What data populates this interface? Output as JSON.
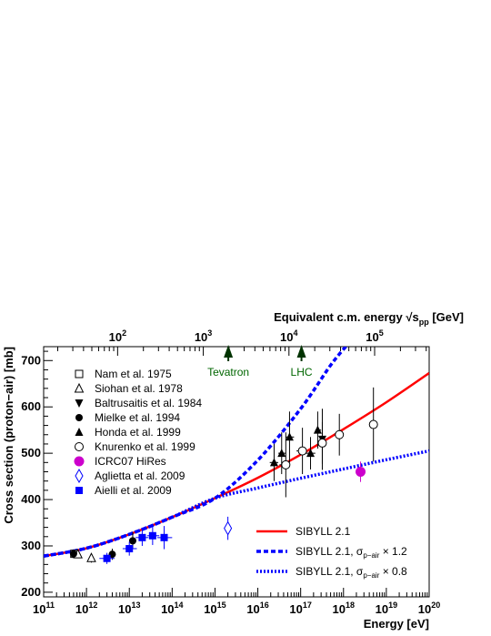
{
  "chart_data": {
    "type": "scatter",
    "ylabel": "Cross section (proton−air)  [mb]",
    "xlabel": "Energy   [eV]",
    "top_axis_label": "Equivalent c.m. energy",
    "top_axis_symbol": "√s",
    "top_axis_sub": "pp",
    "top_axis_unit": "[GeV]",
    "x_scale": "log",
    "xlim": [
      100000000000.0,
      1e+20
    ],
    "ylim": [
      190,
      730
    ],
    "x_ticks": [
      {
        "e": 11,
        "label": "10",
        "exp": "11"
      },
      {
        "e": 12,
        "label": "10",
        "exp": "12"
      },
      {
        "e": 13,
        "label": "10",
        "exp": "13"
      },
      {
        "e": 14,
        "label": "10",
        "exp": "14"
      },
      {
        "e": 15,
        "label": "10",
        "exp": "15"
      },
      {
        "e": 16,
        "label": "10",
        "exp": "16"
      },
      {
        "e": 17,
        "label": "10",
        "exp": "17"
      },
      {
        "e": 18,
        "label": "10",
        "exp": "18"
      },
      {
        "e": 19,
        "label": "10",
        "exp": "19"
      },
      {
        "e": 20,
        "label": "10",
        "exp": "20"
      }
    ],
    "y_ticks": [
      {
        "v": 200,
        "label": "200"
      },
      {
        "v": 300,
        "label": "300"
      },
      {
        "v": 400,
        "label": "400"
      },
      {
        "v": 500,
        "label": "500"
      },
      {
        "v": 600,
        "label": "600"
      },
      {
        "v": 700,
        "label": "700"
      }
    ],
    "top_ticks": [
      {
        "e": 2,
        "label": "10",
        "exp": "2"
      },
      {
        "e": 3,
        "label": "10",
        "exp": "3"
      },
      {
        "e": 4,
        "label": "10",
        "exp": "4"
      },
      {
        "e": 5,
        "label": "10",
        "exp": "5"
      }
    ],
    "annotations": [
      {
        "text": "Tevatron",
        "sqrt_s_gev": 1960
      },
      {
        "text": "LHC",
        "sqrt_s_gev": 14000
      }
    ],
    "series": [
      {
        "name": "Nam et al. 1975",
        "marker": "open-square",
        "color": "#000000",
        "points": [
          {
            "x": 520000000000.0,
            "y": 283,
            "yerr": 6
          }
        ]
      },
      {
        "name": "Siohan et al. 1978",
        "marker": "open-triangle",
        "color": "#000000",
        "points": [
          {
            "x": 630000000000.0,
            "y": 282,
            "yerr": 8
          },
          {
            "x": 1300000000000.0,
            "y": 274,
            "yerr": 10
          }
        ]
      },
      {
        "name": "Baltrusaitis et al. 1984",
        "marker": "filled-triangle-down",
        "color": "#000000",
        "points": [
          {
            "x": 3.2e+17,
            "y": 530,
            "yerr": 66
          }
        ]
      },
      {
        "name": "Mielke et al. 1994",
        "marker": "filled-circle",
        "color": "#000000",
        "points": [
          {
            "x": 500000000000.0,
            "y": 283,
            "yerr": 8
          },
          {
            "x": 4000000000000.0,
            "y": 282,
            "yerr": 12
          },
          {
            "x": 12000000000000.0,
            "y": 311,
            "yerr": 18
          }
        ]
      },
      {
        "name": "Honda et al. 1999",
        "marker": "filled-triangle",
        "color": "#000000",
        "points": [
          {
            "x": 2.4e+16,
            "y": 480,
            "yerr": 40,
            "xerr": [
              1.9e+16,
              3e+16
            ]
          },
          {
            "x": 3.6e+16,
            "y": 500,
            "yerr": 45,
            "xerr": [
              3e+16,
              4.5e+16
            ]
          },
          {
            "x": 5.5e+16,
            "y": 535,
            "yerr": 55,
            "xerr": [
              4.5e+16,
              7e+16
            ]
          },
          {
            "x": 1.7e+17,
            "y": 500,
            "yerr": 35,
            "xerr": [
              1.3e+17,
              2.2e+17
            ]
          },
          {
            "x": 2.5e+17,
            "y": 550,
            "yerr": 40,
            "xerr": [
              2.2e+17,
              3e+17
            ]
          }
        ]
      },
      {
        "name": "Knurenko et al. 1999",
        "marker": "open-circle",
        "color": "#000000",
        "points": [
          {
            "x": 4.5e+16,
            "y": 475,
            "yerr": 70,
            "xerr": [
              3.2e+16,
              5.6e+16
            ]
          },
          {
            "x": 1.1e+17,
            "y": 505,
            "yerr": 50,
            "xerr": [
              8e+16,
              1.4e+17
            ]
          },
          {
            "x": 3.2e+17,
            "y": 522,
            "yerr": 45,
            "xerr": [
              2.6e+17,
              4e+17
            ]
          },
          {
            "x": 8e+17,
            "y": 540,
            "yerr": 45,
            "xerr": [
              6.5e+17,
              1e+18
            ]
          },
          {
            "x": 5e+18,
            "y": 562,
            "yerr": 80,
            "xerr": [
              4e+18,
              6.2e+18
            ]
          }
        ]
      },
      {
        "name": "ICRC07 HiRes",
        "marker": "filled-circle-large",
        "color": "#cc00cc",
        "points": [
          {
            "x": 2.5e+18,
            "y": 460,
            "yerr": 22
          }
        ]
      },
      {
        "name": "Aglietta et al. 2009",
        "marker": "open-diamond",
        "color": "#0000ff",
        "points": [
          {
            "x": 2000000000000000.0,
            "y": 338,
            "yerr": 25
          }
        ]
      },
      {
        "name": "Aielli et al. 2009",
        "marker": "filled-square",
        "color": "#0000ff",
        "points": [
          {
            "x": 3000000000000.0,
            "y": 273,
            "yerr": 12,
            "xerr": [
              2000000000000.0,
              4500000000000.0
            ]
          },
          {
            "x": 10000000000000.0,
            "y": 294,
            "yerr": 15,
            "xerr": [
              7000000000000.0,
              15000000000000.0
            ]
          },
          {
            "x": 20000000000000.0,
            "y": 318,
            "yerr": 18,
            "xerr": [
              14000000000000.0,
              28000000000000.0
            ]
          },
          {
            "x": 35000000000000.0,
            "y": 322,
            "yerr": 20,
            "xerr": [
              26000000000000.0,
              50000000000000.0
            ]
          },
          {
            "x": 65000000000000.0,
            "y": 318,
            "yerr": 25,
            "xerr": [
              45000000000000.0,
              100000000000000.0
            ]
          }
        ]
      }
    ],
    "curves": [
      {
        "name": "SIBYLL 2.1",
        "style": "solid",
        "color": "#ff0000",
        "points": [
          [
            11,
            278
          ],
          [
            12,
            295
          ],
          [
            13,
            325
          ],
          [
            14,
            362
          ],
          [
            15,
            403
          ],
          [
            16,
            447
          ],
          [
            17,
            497
          ],
          [
            18,
            552
          ],
          [
            19,
            610
          ],
          [
            20,
            673
          ]
        ]
      },
      {
        "name": "SIBYLL 2.1, σp−air × 1.2",
        "style": "dashed",
        "color": "#0000ff",
        "points": [
          [
            11,
            278
          ],
          [
            12,
            295
          ],
          [
            13,
            325
          ],
          [
            14,
            362
          ],
          [
            15,
            403
          ],
          [
            16,
            485
          ],
          [
            17,
            596
          ],
          [
            17.7,
            690
          ],
          [
            18.1,
            735
          ]
        ]
      },
      {
        "name": "SIBYLL 2.1, σp−air × 0.8",
        "style": "dotted",
        "color": "#0000ff",
        "points": [
          [
            11,
            278
          ],
          [
            12,
            295
          ],
          [
            13,
            325
          ],
          [
            14,
            362
          ],
          [
            15,
            403
          ],
          [
            16,
            425
          ],
          [
            17,
            446
          ],
          [
            18,
            466
          ],
          [
            19,
            486
          ],
          [
            20,
            505
          ]
        ]
      }
    ]
  }
}
